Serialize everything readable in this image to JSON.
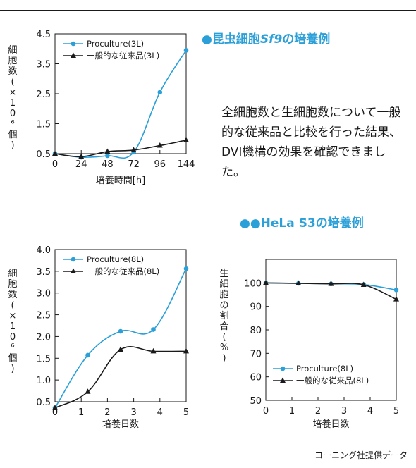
{
  "heading_sf9": {
    "marker": "●",
    "text_prefix": "昆虫細胞",
    "text_italic": "Sf9",
    "text_suffix": "の培養例"
  },
  "heading_hela": {
    "marker": "●●",
    "text": "HeLa S3の培養例"
  },
  "paragraph": "全細胞数と生細胞数について一般的な従来品と比較を行った結果、DVI機構の効果を確認できました。",
  "credit": "コーニング社提供データ",
  "colors": {
    "series1": "#2a9fd8",
    "series2": "#1a1a1a",
    "heading": "#2a9fd8",
    "axis": "#1a1a1a"
  },
  "chart_data": [
    {
      "type": "line",
      "ylabel": "細胞数(×10⁶個)",
      "xlabel": "培養時間[h]",
      "categories": [
        "0",
        "24",
        "48",
        "72",
        "96",
        "144"
      ],
      "ylim": [
        0.5,
        4.5
      ],
      "yticks": [
        0.5,
        1.5,
        2.5,
        3.5,
        4.5
      ],
      "legend": "top-left",
      "grid": false,
      "series": [
        {
          "name": "Proculture(3L)",
          "values": [
            0.5,
            0.38,
            0.43,
            0.55,
            2.55,
            3.95
          ]
        },
        {
          "name": "一般的な従来品(3L)",
          "values": [
            0.5,
            0.4,
            0.57,
            0.62,
            0.77,
            0.95
          ]
        }
      ]
    },
    {
      "type": "line",
      "ylabel": "細胞数(×10⁶個)",
      "xlabel": "培養日数",
      "x": [
        0,
        1.25,
        2.5,
        3.75,
        5
      ],
      "xlim": [
        0,
        5
      ],
      "xticks": [
        0,
        1,
        2,
        3,
        4,
        5
      ],
      "ylim": [
        0.5,
        4.0
      ],
      "yticks": [
        0.5,
        1.0,
        1.5,
        2.0,
        2.5,
        3.0,
        3.5,
        4.0
      ],
      "ytick_labels": [
        "0.5",
        "1.0",
        "1.5",
        "2.0",
        "2.5",
        "3.0",
        "3.5",
        "4.0"
      ],
      "legend": "top-left",
      "grid": false,
      "series": [
        {
          "name": "Proculture(8L)",
          "values": [
            0.36,
            1.57,
            2.12,
            2.16,
            3.56
          ]
        },
        {
          "name": "一般的な従来品(8L)",
          "values": [
            0.36,
            0.73,
            1.7,
            1.66,
            1.66
          ]
        }
      ]
    },
    {
      "type": "line",
      "ylabel": "生細胞の割合(%)",
      "xlabel": "培養日数",
      "x": [
        0,
        1.25,
        2.5,
        3.75,
        5
      ],
      "xlim": [
        0,
        5
      ],
      "xticks": [
        0,
        1,
        2,
        3,
        4,
        5
      ],
      "ylim": [
        50,
        110
      ],
      "yticks": [
        50,
        60,
        70,
        80,
        90,
        100
      ],
      "legend": "bottom-left",
      "grid": false,
      "series": [
        {
          "name": "Proculture(8L)",
          "values": [
            100,
            99.8,
            99.6,
            99.3,
            97
          ]
        },
        {
          "name": "一般的な従来品(8L)",
          "values": [
            100,
            99.8,
            99.6,
            99.2,
            93
          ]
        }
      ]
    }
  ]
}
